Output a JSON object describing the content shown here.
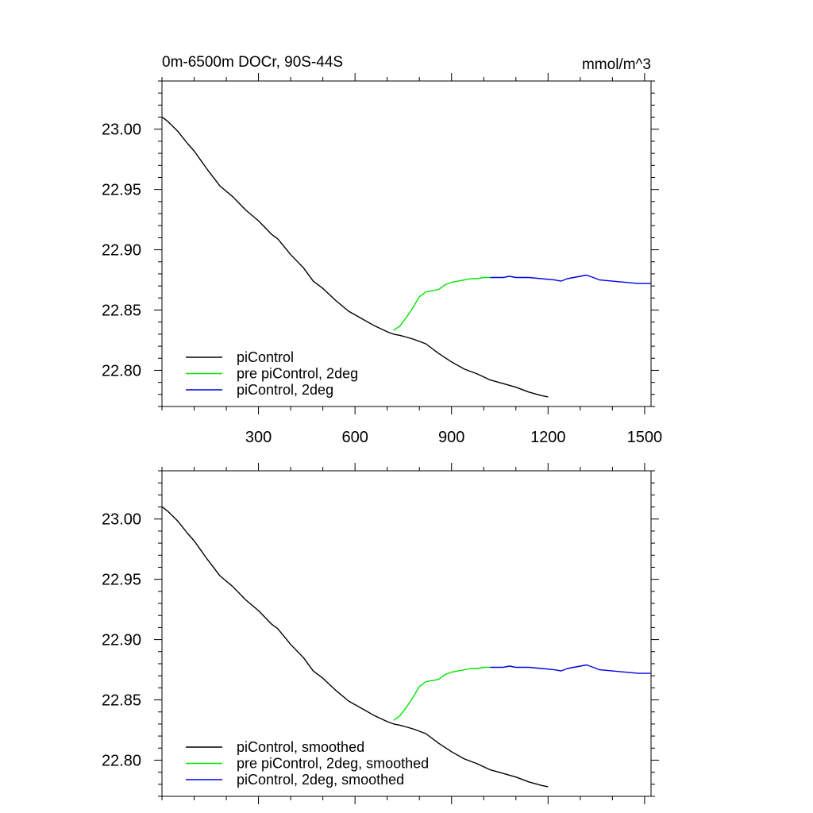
{
  "chart_data": [
    {
      "type": "line",
      "title": "0m-6500m DOCr, 90S-44S",
      "units": "mmol/m^3",
      "xlim": [
        0,
        1520
      ],
      "ylim": [
        22.77,
        23.04
      ],
      "x_ticks": [
        300,
        600,
        900,
        1200,
        1500
      ],
      "y_ticks": [
        "23.00",
        "22.95",
        "22.90",
        "22.85",
        "22.80"
      ],
      "show_x_tick_labels": true,
      "legend_position": "bottom-left",
      "series": [
        {
          "name": "piControl",
          "color": "#000000",
          "x": [
            1,
            20,
            50,
            80,
            100,
            140,
            180,
            220,
            260,
            300,
            340,
            360,
            400,
            440,
            470,
            500,
            540,
            580,
            620,
            660,
            700,
            720,
            740,
            780,
            820,
            860,
            900,
            940,
            980,
            1020,
            1060,
            1100,
            1140,
            1180,
            1200
          ],
          "y": [
            23.01,
            23.006,
            22.998,
            22.988,
            22.982,
            22.967,
            22.953,
            22.944,
            22.933,
            22.924,
            22.913,
            22.909,
            22.896,
            22.885,
            22.874,
            22.868,
            22.858,
            22.849,
            22.843,
            22.837,
            22.832,
            22.83,
            22.829,
            22.826,
            22.822,
            22.814,
            22.807,
            22.801,
            22.797,
            22.792,
            22.789,
            22.786,
            22.782,
            22.779,
            22.778
          ]
        },
        {
          "name": "pre piControl, 2deg",
          "color": "#00e400",
          "x": [
            720,
            740,
            760,
            780,
            800,
            820,
            840,
            860,
            880,
            900,
            920,
            940,
            960,
            980,
            1000,
            1020
          ],
          "y": [
            22.833,
            22.837,
            22.844,
            22.852,
            22.861,
            22.865,
            22.866,
            22.867,
            22.871,
            22.873,
            22.874,
            22.875,
            22.876,
            22.876,
            22.877,
            22.877
          ]
        },
        {
          "name": "piControl, 2deg",
          "color": "#0000e6",
          "x": [
            1020,
            1060,
            1080,
            1100,
            1140,
            1180,
            1220,
            1240,
            1260,
            1280,
            1300,
            1320,
            1340,
            1360,
            1400,
            1440,
            1480,
            1520
          ],
          "y": [
            22.877,
            22.877,
            22.878,
            22.877,
            22.877,
            22.876,
            22.875,
            22.874,
            22.876,
            22.877,
            22.878,
            22.879,
            22.877,
            22.875,
            22.874,
            22.873,
            22.872,
            22.872
          ]
        }
      ]
    },
    {
      "type": "line",
      "title": "",
      "units": "",
      "xlim": [
        0,
        1520
      ],
      "ylim": [
        22.77,
        23.04
      ],
      "x_ticks": [
        300,
        600,
        900,
        1200,
        1500
      ],
      "y_ticks": [
        "23.00",
        "22.95",
        "22.90",
        "22.85",
        "22.80"
      ],
      "show_x_tick_labels": false,
      "legend_position": "bottom-left",
      "series": [
        {
          "name": "piControl, smoothed",
          "color": "#000000",
          "x": [
            1,
            20,
            50,
            80,
            100,
            140,
            180,
            220,
            260,
            300,
            340,
            360,
            400,
            440,
            470,
            500,
            540,
            580,
            620,
            660,
            700,
            720,
            740,
            780,
            820,
            860,
            900,
            940,
            980,
            1020,
            1060,
            1100,
            1140,
            1180,
            1200
          ],
          "y": [
            23.01,
            23.006,
            22.998,
            22.988,
            22.982,
            22.967,
            22.953,
            22.944,
            22.933,
            22.924,
            22.913,
            22.909,
            22.896,
            22.885,
            22.874,
            22.868,
            22.858,
            22.849,
            22.843,
            22.837,
            22.832,
            22.83,
            22.829,
            22.826,
            22.822,
            22.814,
            22.807,
            22.801,
            22.797,
            22.792,
            22.789,
            22.786,
            22.782,
            22.779,
            22.778
          ]
        },
        {
          "name": "pre piControl, 2deg, smoothed",
          "color": "#00e400",
          "x": [
            720,
            740,
            760,
            780,
            800,
            820,
            840,
            860,
            880,
            900,
            920,
            940,
            960,
            980,
            1000,
            1020
          ],
          "y": [
            22.833,
            22.837,
            22.844,
            22.852,
            22.861,
            22.865,
            22.866,
            22.867,
            22.871,
            22.873,
            22.874,
            22.875,
            22.876,
            22.876,
            22.877,
            22.877
          ]
        },
        {
          "name": "piControl, 2deg, smoothed",
          "color": "#0000e6",
          "x": [
            1020,
            1060,
            1080,
            1100,
            1140,
            1180,
            1220,
            1240,
            1260,
            1280,
            1300,
            1320,
            1340,
            1360,
            1400,
            1440,
            1480,
            1520
          ],
          "y": [
            22.877,
            22.877,
            22.878,
            22.877,
            22.877,
            22.876,
            22.875,
            22.874,
            22.876,
            22.877,
            22.878,
            22.879,
            22.877,
            22.875,
            22.874,
            22.873,
            22.872,
            22.872
          ]
        }
      ]
    }
  ]
}
